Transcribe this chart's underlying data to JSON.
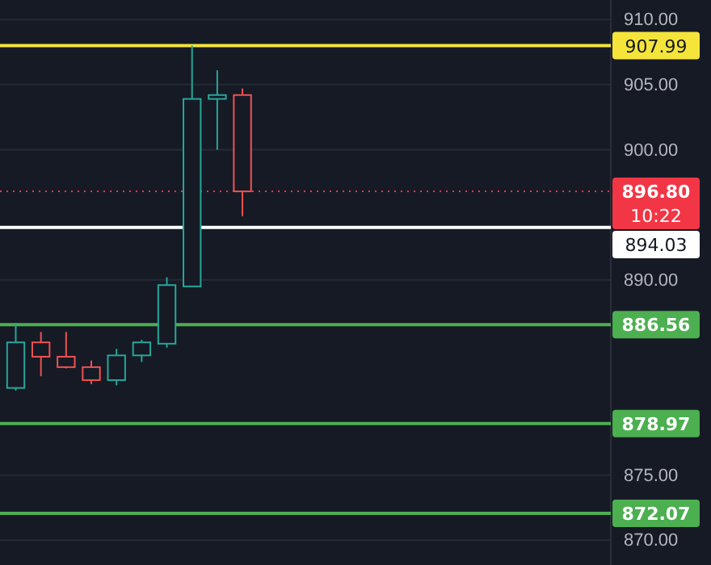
{
  "chart_data": {
    "type": "candlestick",
    "categories": [
      null,
      null,
      null,
      null,
      null,
      null,
      null,
      null,
      null,
      null,
      null,
      null,
      null,
      null,
      null,
      null,
      null,
      null,
      null,
      null,
      null,
      null,
      null,
      null
    ],
    "ohlc": [
      [
        881.7,
        886.7,
        881.5,
        885.2
      ],
      [
        885.2,
        886.0,
        882.6,
        884.1
      ],
      [
        884.1,
        886.0,
        883.2,
        883.3
      ],
      [
        883.3,
        883.8,
        882.0,
        882.3
      ],
      [
        882.3,
        884.7,
        881.9,
        884.2
      ],
      [
        884.2,
        885.4,
        883.7,
        885.2
      ],
      [
        885.1,
        890.2,
        884.8,
        889.6
      ],
      [
        889.5,
        908.0,
        889.5,
        903.9
      ],
      [
        903.9,
        906.1,
        900.0,
        904.2
      ],
      [
        904.2,
        904.7,
        894.9,
        896.8
      ],
      null,
      null,
      null,
      null,
      null,
      null,
      null,
      null,
      null,
      null,
      null,
      null,
      null,
      null
    ],
    "colors": [
      "#26a69a",
      "#ef5350",
      "#ef5350",
      "#ef5350",
      "#26a69a",
      "#26a69a",
      "#26a69a",
      "#26a69a",
      "#26a69a",
      "#ef5350",
      null,
      null,
      null,
      null,
      null,
      null,
      null,
      null,
      null,
      null,
      null,
      null,
      null,
      null
    ],
    "ylim": [
      868.1,
      911.5
    ],
    "yticks": [
      {
        "value": 870,
        "label": "870.00"
      },
      {
        "value": 875,
        "label": "875.00"
      },
      {
        "value": 890,
        "label": "890.00"
      },
      {
        "value": 900,
        "label": "900.00"
      },
      {
        "value": 905,
        "label": "905.00"
      },
      {
        "value": 910,
        "label": "910.00"
      }
    ],
    "grid": "y",
    "tick_labels": "y",
    "ref_lines": [
      {
        "axis": "y",
        "value": 907.99,
        "label": "907.99",
        "color": "#f5e53b"
      },
      {
        "axis": "y",
        "value": 896.8,
        "label": "896.80",
        "color": "#f23645",
        "line_style": "dotted"
      },
      {
        "axis": "y",
        "value": 894.03,
        "label": "894.03",
        "color": "#ffffff"
      },
      {
        "axis": "y",
        "value": 886.56,
        "label": "886.56",
        "color": "#4caf50"
      },
      {
        "axis": "y",
        "value": 878.97,
        "label": "878.97",
        "color": "#4caf50"
      },
      {
        "axis": "y",
        "value": 872.07,
        "label": "872.07",
        "color": "#4caf50"
      }
    ],
    "annotations": [
      "10:22"
    ]
  }
}
